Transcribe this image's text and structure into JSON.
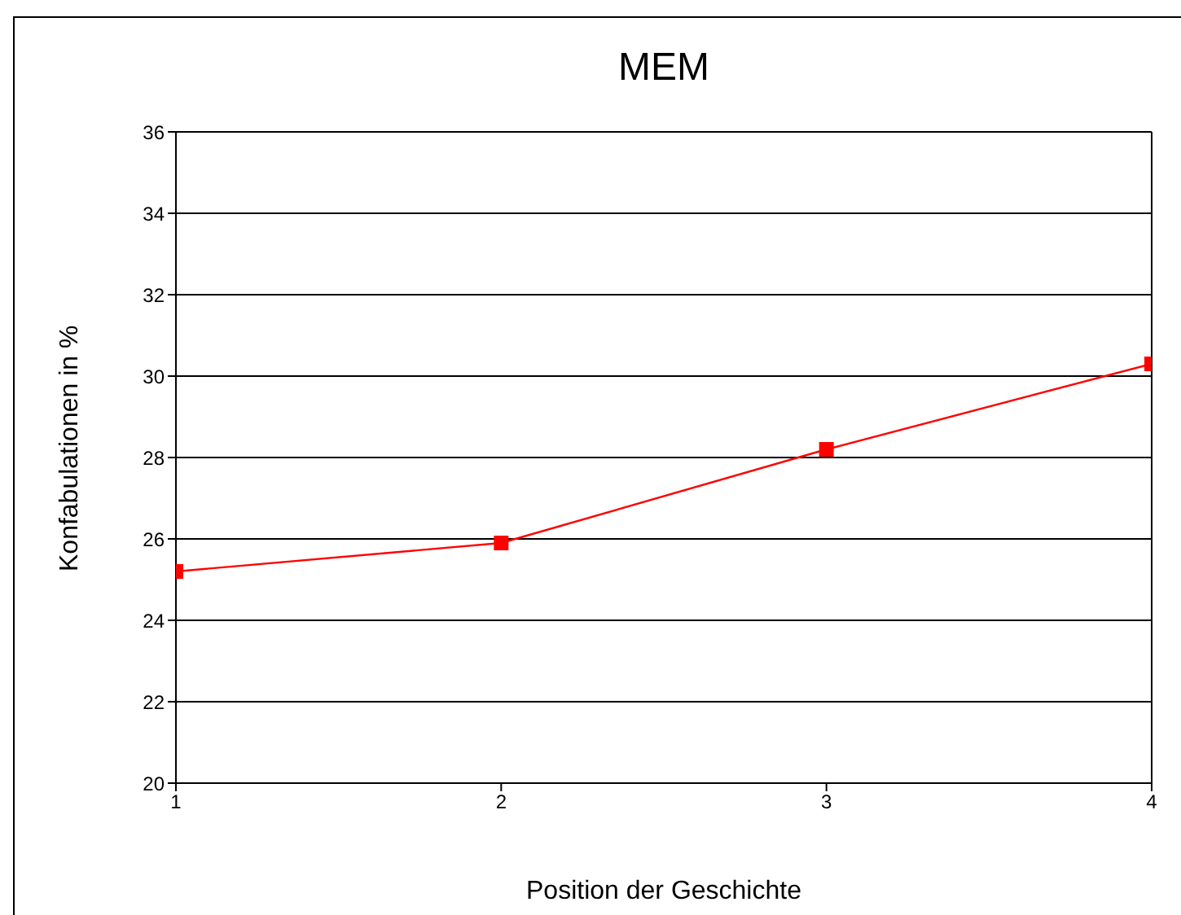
{
  "chart_data": {
    "type": "line",
    "title": "MEM",
    "xlabel": "Position der Geschichte",
    "ylabel": "Konfabulationen in %",
    "x": [
      1,
      2,
      3,
      4
    ],
    "series": [
      {
        "color": "#ff0000",
        "values": [
          25.2,
          25.9,
          28.2,
          30.3
        ]
      }
    ],
    "xlim": [
      1,
      4
    ],
    "xticks": [
      1,
      2,
      3,
      4
    ],
    "ylim": [
      20,
      36
    ],
    "yticks": [
      20,
      22,
      24,
      26,
      28,
      30,
      32,
      34,
      36
    ],
    "grid": "y",
    "marker": "square",
    "line_style": "solid"
  }
}
